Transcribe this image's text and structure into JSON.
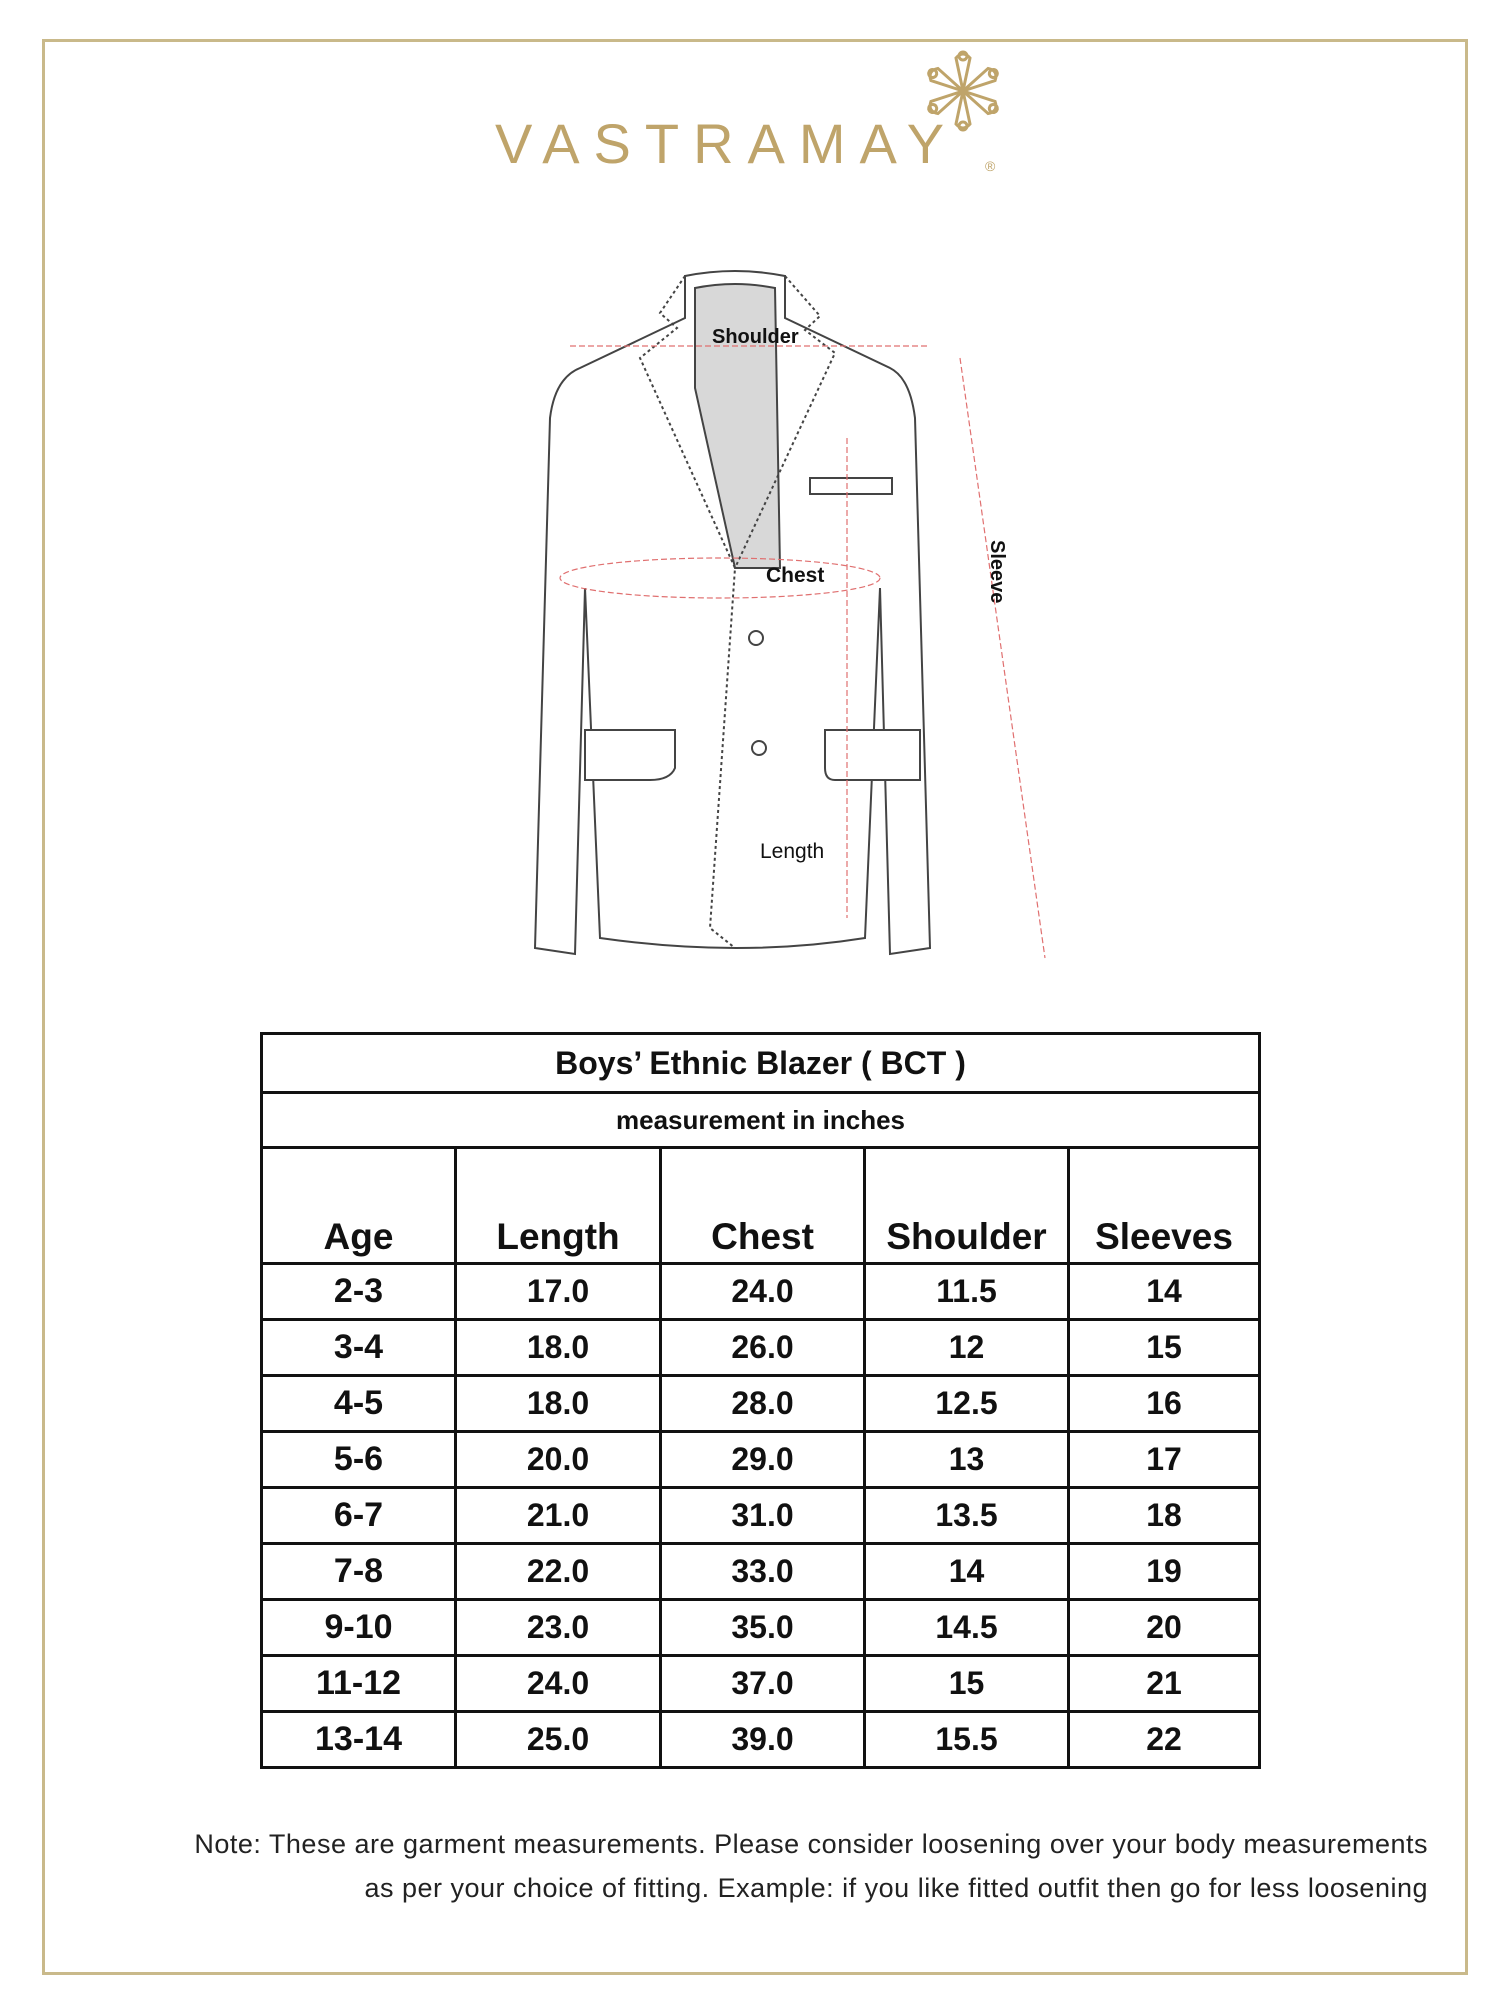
{
  "brand": {
    "name": "VASTRAMAY",
    "registered_mark": "®",
    "color": "#bfa46a"
  },
  "diagram": {
    "labels": {
      "shoulder": "Shoulder",
      "chest": "Chest",
      "length": "Length",
      "sleeve": "Sleeve"
    }
  },
  "table": {
    "title": "Boys’ Ethnic Blazer ( BCT )",
    "subtitle": "measurement in inches",
    "headers": [
      "Age",
      "Length",
      "Chest",
      "Shoulder",
      "Sleeves"
    ],
    "rows": [
      [
        "2-3",
        "17.0",
        "24.0",
        "11.5",
        "14"
      ],
      [
        "3-4",
        "18.0",
        "26.0",
        "12",
        "15"
      ],
      [
        "4-5",
        "18.0",
        "28.0",
        "12.5",
        "16"
      ],
      [
        "5-6",
        "20.0",
        "29.0",
        "13",
        "17"
      ],
      [
        "6-7",
        "21.0",
        "31.0",
        "13.5",
        "18"
      ],
      [
        "7-8",
        "22.0",
        "33.0",
        "14",
        "19"
      ],
      [
        "9-10",
        "23.0",
        "35.0",
        "14.5",
        "20"
      ],
      [
        "11-12",
        "24.0",
        "37.0",
        "15",
        "21"
      ],
      [
        "13-14",
        "25.0",
        "39.0",
        "15.5",
        "22"
      ]
    ]
  },
  "note": {
    "line1": "Note: These are garment measurements. Please consider loosening over your body measurements",
    "line2": "as per your choice of fitting. Example: if you like fitted outfit then go for less loosening"
  }
}
